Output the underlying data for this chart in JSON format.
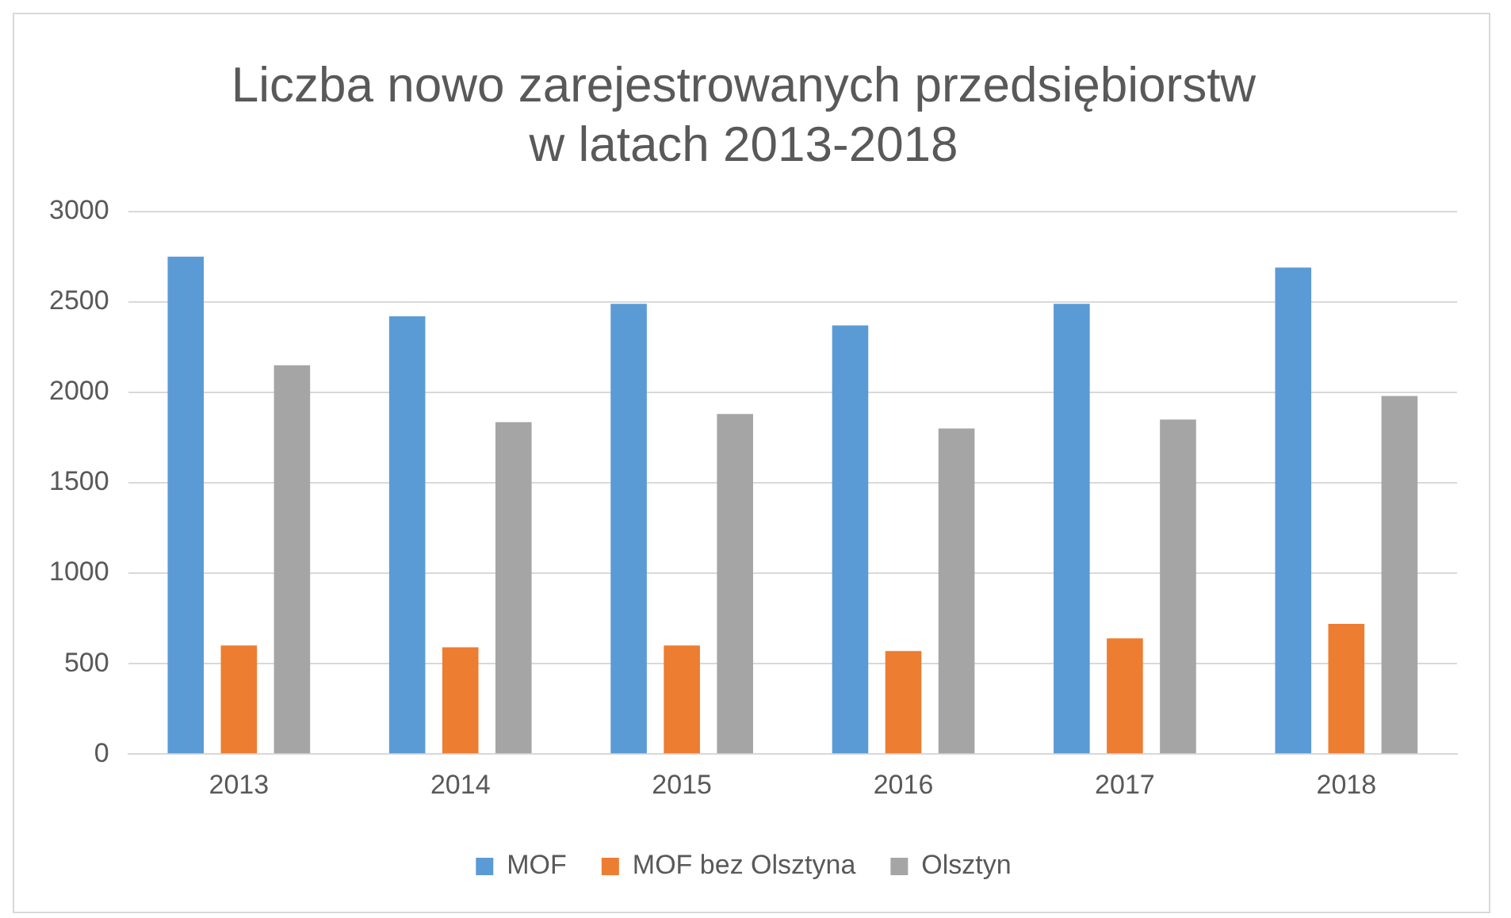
{
  "chart_data": {
    "type": "bar",
    "title": "Liczba nowo zarejestrowanych przedsiębiorstw\nw latach 2013-2018",
    "categories": [
      "2013",
      "2014",
      "2015",
      "2016",
      "2017",
      "2018"
    ],
    "series": [
      {
        "name": "MOF",
        "color": "#5b9bd5",
        "values": [
          2750,
          2420,
          2490,
          2370,
          2490,
          2690
        ]
      },
      {
        "name": "MOF bez Olsztyna",
        "color": "#ed7d31",
        "values": [
          600,
          590,
          600,
          570,
          640,
          720
        ]
      },
      {
        "name": "Olsztyn",
        "color": "#a5a5a5",
        "values": [
          2150,
          1835,
          1880,
          1800,
          1850,
          1980
        ]
      }
    ],
    "ylim": [
      0,
      3000
    ],
    "yticks": [
      0,
      500,
      1000,
      1500,
      2000,
      2500,
      3000
    ],
    "grid": "y",
    "legend": "bottom"
  }
}
